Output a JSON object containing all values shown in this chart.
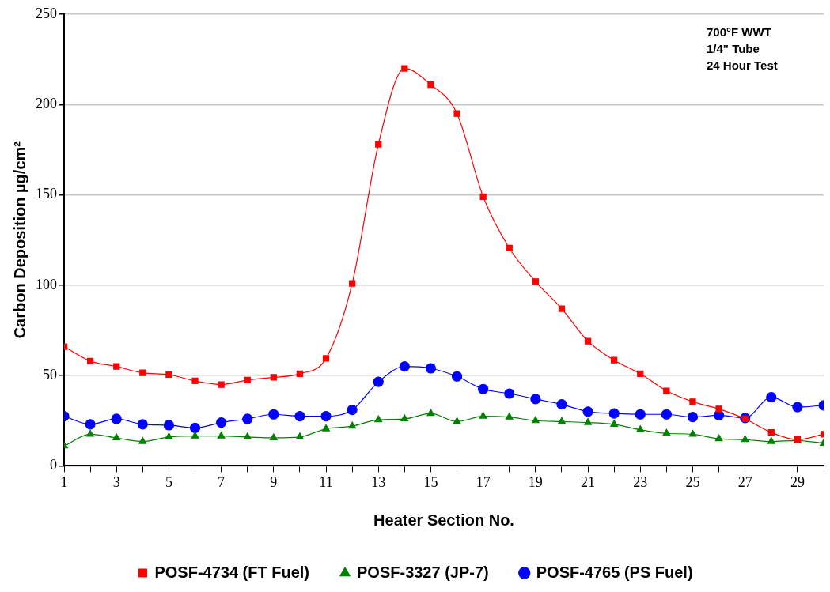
{
  "chart_data": {
    "type": "line",
    "xlabel": "Heater Section No.",
    "ylabel": "Carbon Deposition µg/cm²",
    "x": [
      1,
      2,
      3,
      4,
      5,
      6,
      7,
      8,
      9,
      10,
      11,
      12,
      13,
      14,
      15,
      16,
      17,
      18,
      19,
      20,
      21,
      22,
      23,
      24,
      25,
      26,
      27,
      28,
      29,
      30
    ],
    "xlim": [
      1,
      30
    ],
    "xticks": [
      1,
      {
        "value": 2,
        "label": null
      },
      3,
      {
        "value": 4,
        "label": null
      },
      5,
      {
        "value": 6,
        "label": null
      },
      7,
      {
        "value": 8,
        "label": null
      },
      9,
      {
        "value": 10,
        "label": null
      },
      11,
      {
        "value": 12,
        "label": null
      },
      13,
      {
        "value": 14,
        "label": null
      },
      15,
      {
        "value": 16,
        "label": null
      },
      17,
      {
        "value": 18,
        "label": null
      },
      19,
      {
        "value": 20,
        "label": null
      },
      21,
      {
        "value": 22,
        "label": null
      },
      23,
      {
        "value": 24,
        "label": null
      },
      25,
      {
        "value": 26,
        "label": null
      },
      27,
      {
        "value": 28,
        "label": null
      },
      29,
      {
        "value": 30,
        "label": null
      }
    ],
    "ylim": [
      0,
      250
    ],
    "yticks": [
      0,
      50,
      100,
      150,
      200,
      250
    ],
    "grid": "y",
    "legend": "bottom",
    "annotations": [
      "700°F WWT",
      "1/4\" Tube",
      "24 Hour Test"
    ],
    "series": [
      {
        "name": "POSF-4734 (FT Fuel)",
        "color": "#ff0000",
        "marker": "square",
        "values": [
          66,
          58,
          55,
          51.5,
          50.5,
          47,
          45,
          47.5,
          49,
          51,
          59.5,
          101,
          178,
          220,
          211,
          195,
          149,
          120.5,
          102,
          87,
          69,
          58.5,
          51,
          41.5,
          35.5,
          31.5,
          26,
          18.5,
          14.5,
          17.5
        ]
      },
      {
        "name": "POSF-3327 (JP-7)",
        "color": "#008000",
        "marker": "triangle",
        "values": [
          11,
          17.5,
          15.5,
          13.5,
          16,
          16.5,
          16.5,
          16,
          15.5,
          16,
          20.5,
          22,
          25.5,
          26,
          29,
          24.5,
          27.5,
          27,
          25,
          24.5,
          24,
          23,
          20,
          18,
          17.5,
          15,
          14.5,
          13.5,
          14,
          12.5
        ]
      },
      {
        "name": "POSF-4765 (PS Fuel)",
        "color": "#0000ff",
        "marker": "circle",
        "values": [
          27.5,
          23,
          26,
          23,
          22.5,
          21,
          24,
          26,
          28.5,
          27.5,
          27.5,
          31,
          46.5,
          55,
          54,
          49.5,
          42.5,
          40,
          37,
          34,
          30,
          29,
          28.5,
          28.5,
          27,
          28,
          26.5,
          38,
          32.5,
          33.5
        ]
      }
    ]
  }
}
